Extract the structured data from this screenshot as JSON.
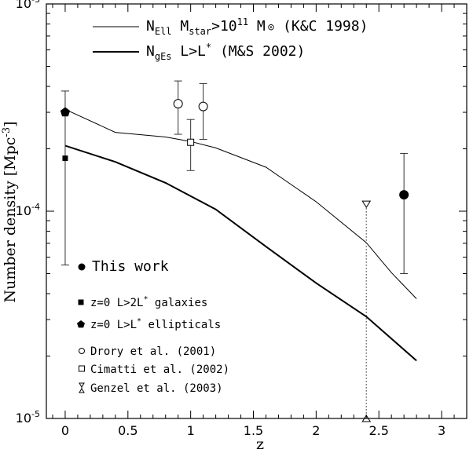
{
  "chart_data": {
    "type": "scatter",
    "xlabel": "z",
    "ylabel": "Number density [Mpc",
    "ylabel_sup": "-3",
    "ylabel_close": "]",
    "xlim": [
      -0.15,
      3.2
    ],
    "ylim": [
      1e-05,
      0.001
    ],
    "yscale": "log",
    "x_ticks": [
      {
        "v": 0,
        "label": "0"
      },
      {
        "v": 0.5,
        "label": "0.5"
      },
      {
        "v": 1,
        "label": "1"
      },
      {
        "v": 1.5,
        "label": "1.5"
      },
      {
        "v": 2,
        "label": "2"
      },
      {
        "v": 2.5,
        "label": "2.5"
      },
      {
        "v": 3,
        "label": "3"
      }
    ],
    "y_ticks": [
      {
        "v": 1e-05,
        "base": "10",
        "exp": "-5"
      },
      {
        "v": 0.0001,
        "base": "10",
        "exp": "-4"
      },
      {
        "v": 0.001,
        "base": "10",
        "exp": "-3"
      }
    ],
    "curves": [
      {
        "id": "ell",
        "legend": {
          "p1": "N",
          "s1": "Ell",
          "p2": " M",
          "s2": "star",
          "p3": ">10",
          "sup": "11",
          "p4": " M",
          "p5": " (K&C 1998)"
        },
        "x": [
          0,
          0.4,
          0.8,
          1.0,
          1.2,
          1.6,
          2.0,
          2.4,
          2.6,
          2.8
        ],
        "y": [
          0.00031,
          0.00024,
          0.000228,
          0.000217,
          0.000202,
          0.000163,
          0.000111,
          7.05e-05,
          5.05e-05,
          3.78e-05
        ]
      },
      {
        "id": "ges",
        "legend": {
          "p1": "N",
          "s1": "gEs",
          "p2": " L>L",
          "sup": "*",
          "p3": " (M&S 2002)"
        },
        "x": [
          0,
          0.4,
          0.8,
          1.2,
          1.6,
          2.0,
          2.4,
          2.8
        ],
        "y": [
          0.000207,
          0.000173,
          0.000137,
          0.000102,
          6.75e-05,
          4.5e-05,
          3.1e-05,
          1.9e-05
        ]
      }
    ],
    "points": [
      {
        "id": "this-work",
        "marker": "filled-circle",
        "x": 2.7,
        "y": 0.00012,
        "ylo": 5e-05,
        "yhi": 0.00019
      },
      {
        "id": "z0-galaxies",
        "marker": "filled-square",
        "x": 0,
        "y": 0.00018,
        "ylo": 5.5e-05,
        "yhi": 0.00038
      },
      {
        "id": "z0-ellipticals",
        "marker": "filled-pentagon",
        "x": 0,
        "y": 0.0003
      },
      {
        "id": "drory-1",
        "marker": "open-circle",
        "x": 0.9,
        "y": 0.00033,
        "ylo": 0.000235,
        "yhi": 0.000425
      },
      {
        "id": "drory-2",
        "marker": "open-circle",
        "x": 1.1,
        "y": 0.00032,
        "ylo": 0.000222,
        "yhi": 0.000413
      },
      {
        "id": "cimatti",
        "marker": "open-square",
        "x": 1.0,
        "y": 0.000215,
        "ylo": 0.000157,
        "yhi": 0.000277
      },
      {
        "id": "genzel",
        "marker": "triangle-pair",
        "x": 2.4,
        "yhi": 0.000108,
        "ylo": 1e-05
      }
    ],
    "legend_points": [
      {
        "marker": "filled-circle",
        "text": "This work"
      },
      {
        "marker": "filled-square",
        "pre": "z=0 L>2L",
        "sup": "*",
        "post": " galaxies"
      },
      {
        "marker": "filled-pentagon",
        "pre": "z=0 L>L",
        "sup": "*",
        "post": " ellipticals"
      },
      {
        "marker": "open-circle",
        "text": "Drory et al. (2001)"
      },
      {
        "marker": "open-square",
        "text": "Cimatti et al. (2002)"
      },
      {
        "marker": "triangle-pair",
        "text": "Genzel et al. (2003)"
      }
    ]
  }
}
